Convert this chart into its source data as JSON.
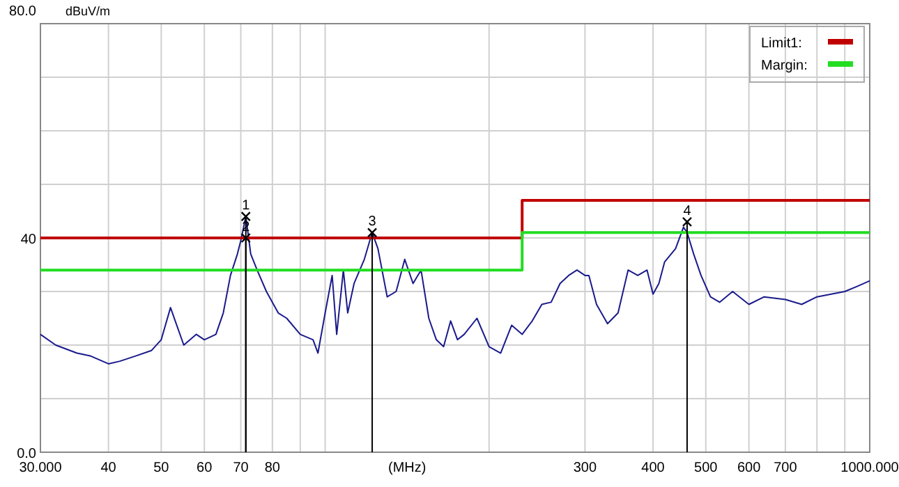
{
  "chart_data": {
    "type": "line",
    "ylabel": "dBuV/m",
    "xlabel": "(MHz)",
    "log": "x",
    "grid": true,
    "legend": "top right",
    "marker": "none",
    "xlim": [
      30,
      1000
    ],
    "ylim": [
      0,
      80
    ],
    "xticks": [
      {
        "value": 30,
        "label": "30.000"
      },
      40,
      50,
      60,
      70,
      80,
      {
        "value": 90,
        "label": null
      },
      {
        "value": 100,
        "label": null
      },
      {
        "value": 200,
        "label": null
      },
      300,
      400,
      500,
      600,
      700,
      {
        "value": 800,
        "label": null
      },
      {
        "value": 900,
        "label": null
      },
      {
        "value": 1000,
        "label": "1000.000"
      }
    ],
    "yticks": [
      {
        "value": 0,
        "label": "0.0"
      },
      {
        "value": 10,
        "label": null
      },
      {
        "value": 20,
        "label": null
      },
      {
        "value": 30,
        "label": null
      },
      40,
      {
        "value": 50,
        "label": null
      },
      {
        "value": 60,
        "label": null
      },
      {
        "value": 70,
        "label": null
      },
      {
        "value": 80,
        "label": "80.0"
      }
    ],
    "series": [
      {
        "color": "#1a1a8c",
        "x": [
          30,
          32,
          35,
          37,
          40,
          42,
          45,
          48,
          50,
          52,
          55,
          58,
          60,
          63,
          65,
          67,
          69,
          70,
          71.5,
          73,
          75,
          78,
          82,
          85,
          90,
          95,
          97,
          100,
          103,
          105,
          108,
          110,
          113,
          118,
          122,
          125,
          130,
          135,
          140,
          145,
          150,
          155,
          160,
          165,
          170,
          175,
          180,
          190,
          200,
          210,
          220,
          230,
          240,
          250,
          260,
          270,
          280,
          290,
          300,
          305,
          315,
          330,
          345,
          360,
          375,
          390,
          400,
          410,
          420,
          440,
          455,
          462,
          475,
          490,
          510,
          530,
          560,
          600,
          640,
          700,
          750,
          800,
          850,
          900,
          950,
          1000
        ],
        "values": [
          22,
          20,
          18.5,
          18,
          16.5,
          17,
          18,
          19,
          21,
          27,
          20,
          22,
          21,
          22,
          26,
          33,
          37,
          39.5,
          44,
          37,
          34,
          30,
          26,
          25,
          22,
          21,
          18.5,
          26,
          33,
          22,
          34,
          26,
          31.5,
          36,
          41,
          38,
          29,
          30,
          36,
          31.5,
          34,
          25,
          21,
          19.7,
          24.5,
          21,
          22,
          25,
          19.7,
          18.5,
          23.7,
          22,
          24.5,
          27.6,
          28,
          31.5,
          33,
          34,
          33,
          33,
          27.6,
          24,
          26,
          34,
          33,
          34,
          29.5,
          31.5,
          35.5,
          38,
          42,
          41,
          37,
          33,
          29,
          28,
          30,
          27.6,
          29,
          28.5,
          27.6,
          29,
          29.5,
          30,
          31,
          32
        ]
      },
      {
        "name": "Limit1:",
        "color": "#c00000",
        "x": [
          30,
          230,
          230,
          1000
        ],
        "values": [
          40,
          40,
          47,
          47
        ]
      },
      {
        "name": "Margin:",
        "color": "#22dd22",
        "x": [
          30,
          230,
          230,
          1000
        ],
        "values": [
          34,
          34,
          41,
          41
        ]
      },
      {
        "type": "scatter",
        "marker": "cross",
        "color": "#000000",
        "x": [
          71.5,
          71.5,
          122,
          462
        ],
        "values": [
          44,
          40,
          41,
          43
        ]
      }
    ],
    "annotations": [
      {
        "text": "1",
        "x": 71.5,
        "y": 44
      },
      {
        "text": "2",
        "x": 71.5,
        "y": 40
      },
      {
        "text": "3",
        "x": 122,
        "y": 41
      },
      {
        "text": "4",
        "x": 462,
        "y": 43
      }
    ]
  }
}
